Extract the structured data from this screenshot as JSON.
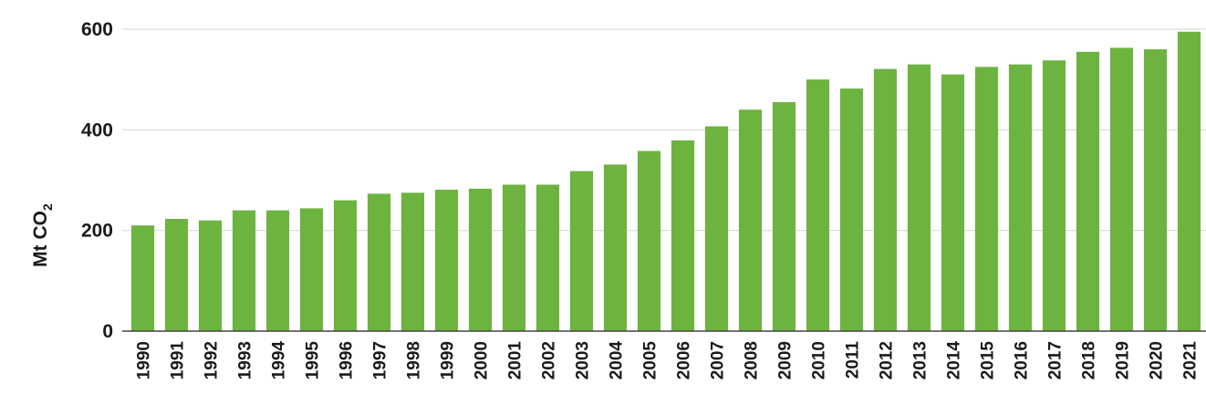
{
  "chart_data": {
    "type": "bar",
    "title": "",
    "xlabel": "",
    "ylabel": "Mt CO",
    "ylabel_subscript": "2",
    "ylim": [
      0,
      600
    ],
    "yticks": [
      0,
      200,
      400,
      600
    ],
    "grid": true,
    "color": "#6db33f",
    "categories": [
      "1990",
      "1991",
      "1992",
      "1993",
      "1994",
      "1995",
      "1996",
      "1997",
      "1998",
      "1999",
      "2000",
      "2001",
      "2002",
      "2003",
      "2004",
      "2005",
      "2006",
      "2007",
      "2008",
      "2009",
      "2010",
      "2011",
      "2012",
      "2013",
      "2014",
      "2015",
      "2016",
      "2017",
      "2018",
      "2019",
      "2020",
      "2021"
    ],
    "values": [
      210,
      223,
      220,
      240,
      240,
      244,
      260,
      273,
      275,
      281,
      283,
      291,
      291,
      318,
      331,
      358,
      379,
      407,
      440,
      455,
      500,
      482,
      521,
      530,
      510,
      525,
      530,
      538,
      555,
      563,
      560,
      595
    ]
  }
}
